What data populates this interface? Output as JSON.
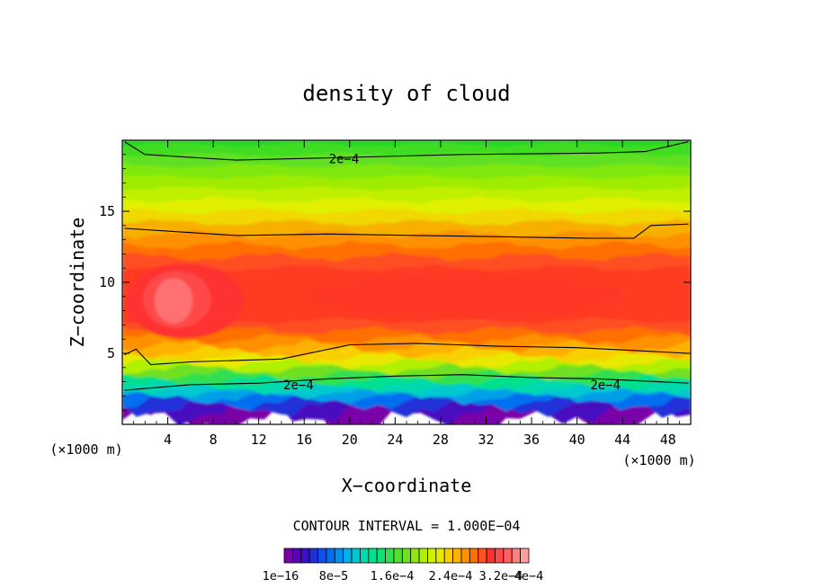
{
  "chart_data": {
    "type": "heatmap",
    "title": "density of cloud",
    "xlabel": "X−coordinate",
    "ylabel": "Z−coordinate",
    "x_unit_left": "(×1000 m)",
    "x_unit_right": "(×1000 m)",
    "xlim": [
      0,
      50
    ],
    "ylim": [
      0,
      20
    ],
    "xticks": [
      4,
      8,
      12,
      16,
      20,
      24,
      28,
      32,
      36,
      40,
      44,
      48
    ],
    "yticks": [
      5,
      10,
      15
    ],
    "contour_labels": [
      {
        "text": "2e−4",
        "x": 19.5,
        "z": 18.7
      },
      {
        "text": "2e−4",
        "x": 15.5,
        "z": 2.8
      },
      {
        "text": "2e−4",
        "x": 42.5,
        "z": 2.8
      }
    ],
    "contour_interval_text": "CONTOUR INTERVAL = 1.000E−04",
    "colorbar": {
      "labels": [
        "1e−16",
        "8e−5",
        "1.6e−4",
        "2.4e−4",
        "3.2e−4",
        "4e−4"
      ],
      "colors": [
        "#7a00a8",
        "#5a00b8",
        "#3a10c8",
        "#2030d8",
        "#1050e8",
        "#0070f0",
        "#0090f0",
        "#00b0e8",
        "#00c8d0",
        "#00d8b0",
        "#00e090",
        "#10e070",
        "#30e050",
        "#50e030",
        "#70e020",
        "#90e810",
        "#b0f000",
        "#d0f000",
        "#e8e800",
        "#f8d000",
        "#ffb000",
        "#ff9000",
        "#ff7000",
        "#ff5020",
        "#ff3030",
        "#ff4848",
        "#ff6060",
        "#ff8080",
        "#ffa0a0"
      ]
    },
    "rows": [
      {
        "z": 0.3,
        "color": "#7a00a8",
        "drift": 0.12
      },
      {
        "z": 0.9,
        "color": "#4a10c0",
        "drift": 0.12
      },
      {
        "z": 1.3,
        "color": "#2030d8",
        "drift": 0.1
      },
      {
        "z": 1.6,
        "color": "#0070f0",
        "drift": 0.08
      },
      {
        "z": 1.9,
        "color": "#00a0e8",
        "drift": 0.06
      },
      {
        "z": 2.2,
        "color": "#00c8d0",
        "drift": 0.05
      },
      {
        "z": 2.5,
        "color": "#00d8b0",
        "drift": 0.05
      },
      {
        "z": 2.8,
        "color": "#00e090",
        "drift": 0.05
      },
      {
        "z": 3.1,
        "color": "#30e050",
        "drift": 0.05
      },
      {
        "z": 3.5,
        "color": "#70e020",
        "drift": 0.05
      },
      {
        "z": 3.9,
        "color": "#b0f000",
        "drift": 0.05
      },
      {
        "z": 4.3,
        "color": "#e8e800",
        "drift": 0.05
      },
      {
        "z": 4.7,
        "color": "#f8d000",
        "drift": 0.05
      },
      {
        "z": 5.1,
        "color": "#ffb000",
        "drift": 0.06
      },
      {
        "z": 5.5,
        "color": "#ff9000",
        "drift": 0.06
      },
      {
        "z": 6.0,
        "color": "#ff7000",
        "drift": 0.05
      },
      {
        "z": 6.6,
        "color": "#ff5020",
        "drift": 0.04
      },
      {
        "z": 7.3,
        "color": "#ff3a20",
        "drift": 0.03
      },
      {
        "z": 11.0,
        "color": "#ff5020",
        "drift": 0.03
      },
      {
        "z": 11.8,
        "color": "#ff7000",
        "drift": 0.04
      },
      {
        "z": 12.6,
        "color": "#ff9000",
        "drift": 0.04
      },
      {
        "z": 13.4,
        "color": "#f8b000",
        "drift": 0.04
      },
      {
        "z": 14.2,
        "color": "#f0d800",
        "drift": 0.03
      },
      {
        "z": 15.0,
        "color": "#e0f000",
        "drift": 0.03
      },
      {
        "z": 15.8,
        "color": "#c0f000",
        "drift": 0.03
      },
      {
        "z": 16.6,
        "color": "#a0ec00",
        "drift": 0.02
      },
      {
        "z": 17.4,
        "color": "#80e810",
        "drift": 0.02
      },
      {
        "z": 18.2,
        "color": "#60e020",
        "drift": 0.02
      },
      {
        "z": 19.0,
        "color": "#40dc20",
        "drift": 0.02
      },
      {
        "z": 19.7,
        "color": "#20d820",
        "drift": 0.02
      }
    ],
    "core_blobs": [
      {
        "x": 5.5,
        "z": 8.7,
        "rx": 5.2,
        "rz": 2.6,
        "color": "#ff3030"
      },
      {
        "x": 4.8,
        "z": 8.8,
        "rx": 3.0,
        "rz": 2.0,
        "color": "#ff4848"
      },
      {
        "x": 4.5,
        "z": 8.7,
        "rx": 1.7,
        "rz": 1.6,
        "color": "#ff7070"
      },
      {
        "x": 30.0,
        "z": 9.0,
        "rx": 14.0,
        "rz": 1.6,
        "color": "#ff3828"
      }
    ],
    "contour_lines": [
      [
        [
          0.2,
          19.9
        ],
        [
          2,
          19.0
        ],
        [
          10,
          18.6
        ],
        [
          20,
          18.8
        ],
        [
          30,
          19.0
        ],
        [
          42,
          19.1
        ],
        [
          46,
          19.2
        ],
        [
          49.8,
          19.9
        ]
      ],
      [
        [
          0.2,
          13.8
        ],
        [
          4,
          13.6
        ],
        [
          10,
          13.3
        ],
        [
          18,
          13.4
        ],
        [
          26,
          13.3
        ],
        [
          34,
          13.2
        ],
        [
          41,
          13.1
        ],
        [
          45,
          13.1
        ],
        [
          46.5,
          14.0
        ],
        [
          49.8,
          14.1
        ]
      ],
      [
        [
          0.2,
          4.9
        ],
        [
          1.2,
          5.3
        ],
        [
          2.5,
          4.2
        ],
        [
          6,
          4.4
        ],
        [
          14,
          4.6
        ],
        [
          20,
          5.6
        ],
        [
          26,
          5.7
        ],
        [
          33,
          5.5
        ],
        [
          40,
          5.4
        ],
        [
          45,
          5.2
        ],
        [
          49.8,
          5.0
        ]
      ],
      [
        [
          0.2,
          2.4
        ],
        [
          6,
          2.8
        ],
        [
          12,
          2.9
        ],
        [
          18,
          3.2
        ],
        [
          24,
          3.4
        ],
        [
          30,
          3.5
        ],
        [
          36,
          3.3
        ],
        [
          42,
          3.2
        ],
        [
          49.8,
          2.9
        ]
      ]
    ]
  }
}
